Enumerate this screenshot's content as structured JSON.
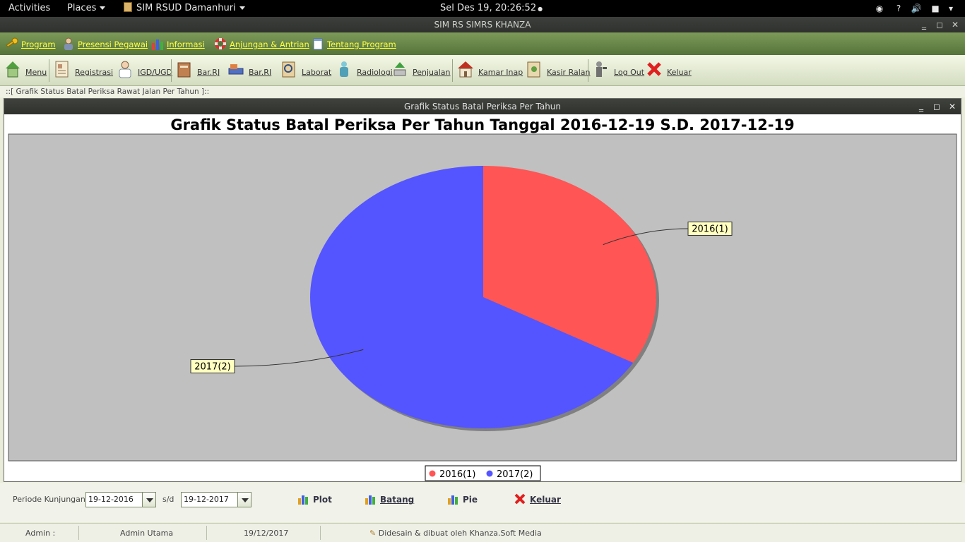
{
  "topbar": {
    "activities": "Activities",
    "places": "Places",
    "app_name": "SIM RSUD Damanhuri",
    "clock": "Sel Des 19, 20:26:52"
  },
  "window": {
    "title": "SIM RS SIMRS KHANZA"
  },
  "menubar": {
    "items": [
      {
        "label": "Program",
        "icon": "key-icon"
      },
      {
        "label": "Presensi Pegawai",
        "icon": "employee-icon"
      },
      {
        "label": "Informasi",
        "icon": "chart-icon"
      },
      {
        "label": "Anjungan & Antrian",
        "icon": "lifebuoy-icon"
      },
      {
        "label": "Tentang Program",
        "icon": "notepad-icon"
      }
    ]
  },
  "toolbar": {
    "items": [
      {
        "label": "Menu",
        "icon": "home-icon"
      },
      {
        "label": "Registrasi",
        "icon": "registration-icon"
      },
      {
        "label": "IGD/UGD",
        "icon": "doctor-icon"
      },
      {
        "label": "Bar.RJ",
        "icon": "outpatient-bill-icon"
      },
      {
        "label": "Bar.RI",
        "icon": "inpatient-bill-icon"
      },
      {
        "label": "Laborat",
        "icon": "laboratory-icon"
      },
      {
        "label": "Radiologi",
        "icon": "radiology-icon"
      },
      {
        "label": "Penjualan",
        "icon": "sales-icon"
      },
      {
        "label": "Kamar Inap",
        "icon": "room-icon"
      },
      {
        "label": "Kasir Ralan",
        "icon": "cashier-icon"
      },
      {
        "label": "Log Out",
        "icon": "logout-icon"
      },
      {
        "label": "Keluar",
        "icon": "exit-icon"
      }
    ]
  },
  "breadcrumb": "::[ Grafik Status Batal Periksa Rawat Jalan Per Tahun ]::",
  "frame": {
    "title": "Grafik Status Batal Periksa Per Tahun"
  },
  "chart_data": {
    "type": "pie",
    "title": "Grafik Status Batal Periksa Per Tahun Tanggal 2016-12-19 S.D. 2017-12-19",
    "categories": [
      "2016",
      "2017"
    ],
    "values": [
      1,
      2
    ],
    "labels": [
      "2016(1)",
      "2017(2)"
    ],
    "colors": [
      "#ff5555",
      "#5555ff"
    ],
    "legend": [
      "2016(1)",
      "2017(2)"
    ],
    "legend_position": "bottom",
    "plot_background": "#c0c0c0"
  },
  "controls": {
    "period_label": "Periode Kunjungan :",
    "date_from": "19-12-2016",
    "sd_label": "s/d",
    "date_to": "19-12-2017",
    "plot_label": "Plot",
    "batang_label": "Batang",
    "pie_label": "Pie",
    "keluar_label": "Keluar"
  },
  "status": {
    "user_label": "Admin :",
    "user_name": "Admin Utama",
    "date": "19/12/2017",
    "credit": "Didesain & dibuat oleh Khanza.Soft Media"
  }
}
